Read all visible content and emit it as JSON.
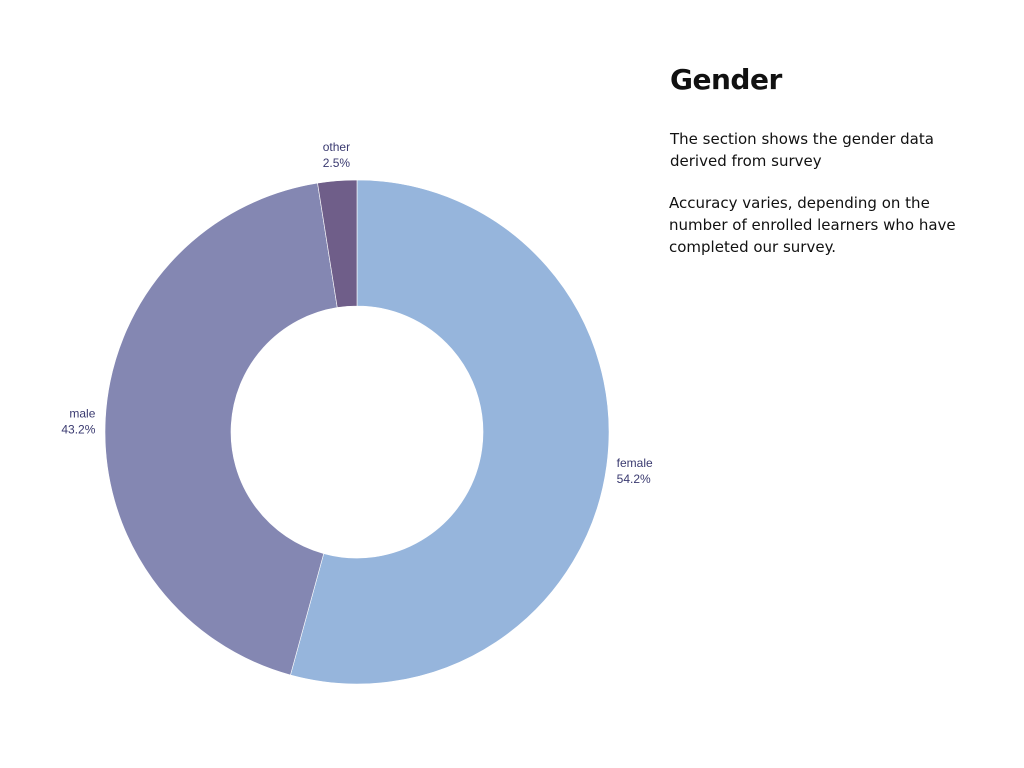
{
  "panel": {
    "title": "Gender",
    "description": "The section shows the gender data derived from survey",
    "accuracy_note": "Accuracy varies, depending on the number of enrolled learners who have completed our survey."
  },
  "chart_data": {
    "type": "pie",
    "hole": 0.5,
    "sort": "clockwise-from-top",
    "slices": [
      {
        "label": "female",
        "value": 54.2,
        "display": "54.2%",
        "color": "#96b5dc"
      },
      {
        "label": "male",
        "value": 43.2,
        "display": "43.2%",
        "color": "#8487b2"
      },
      {
        "label": "other",
        "value": 2.5,
        "display": "2.5%",
        "color": "#6f5e89"
      }
    ],
    "label_color": "#3a3a70"
  }
}
